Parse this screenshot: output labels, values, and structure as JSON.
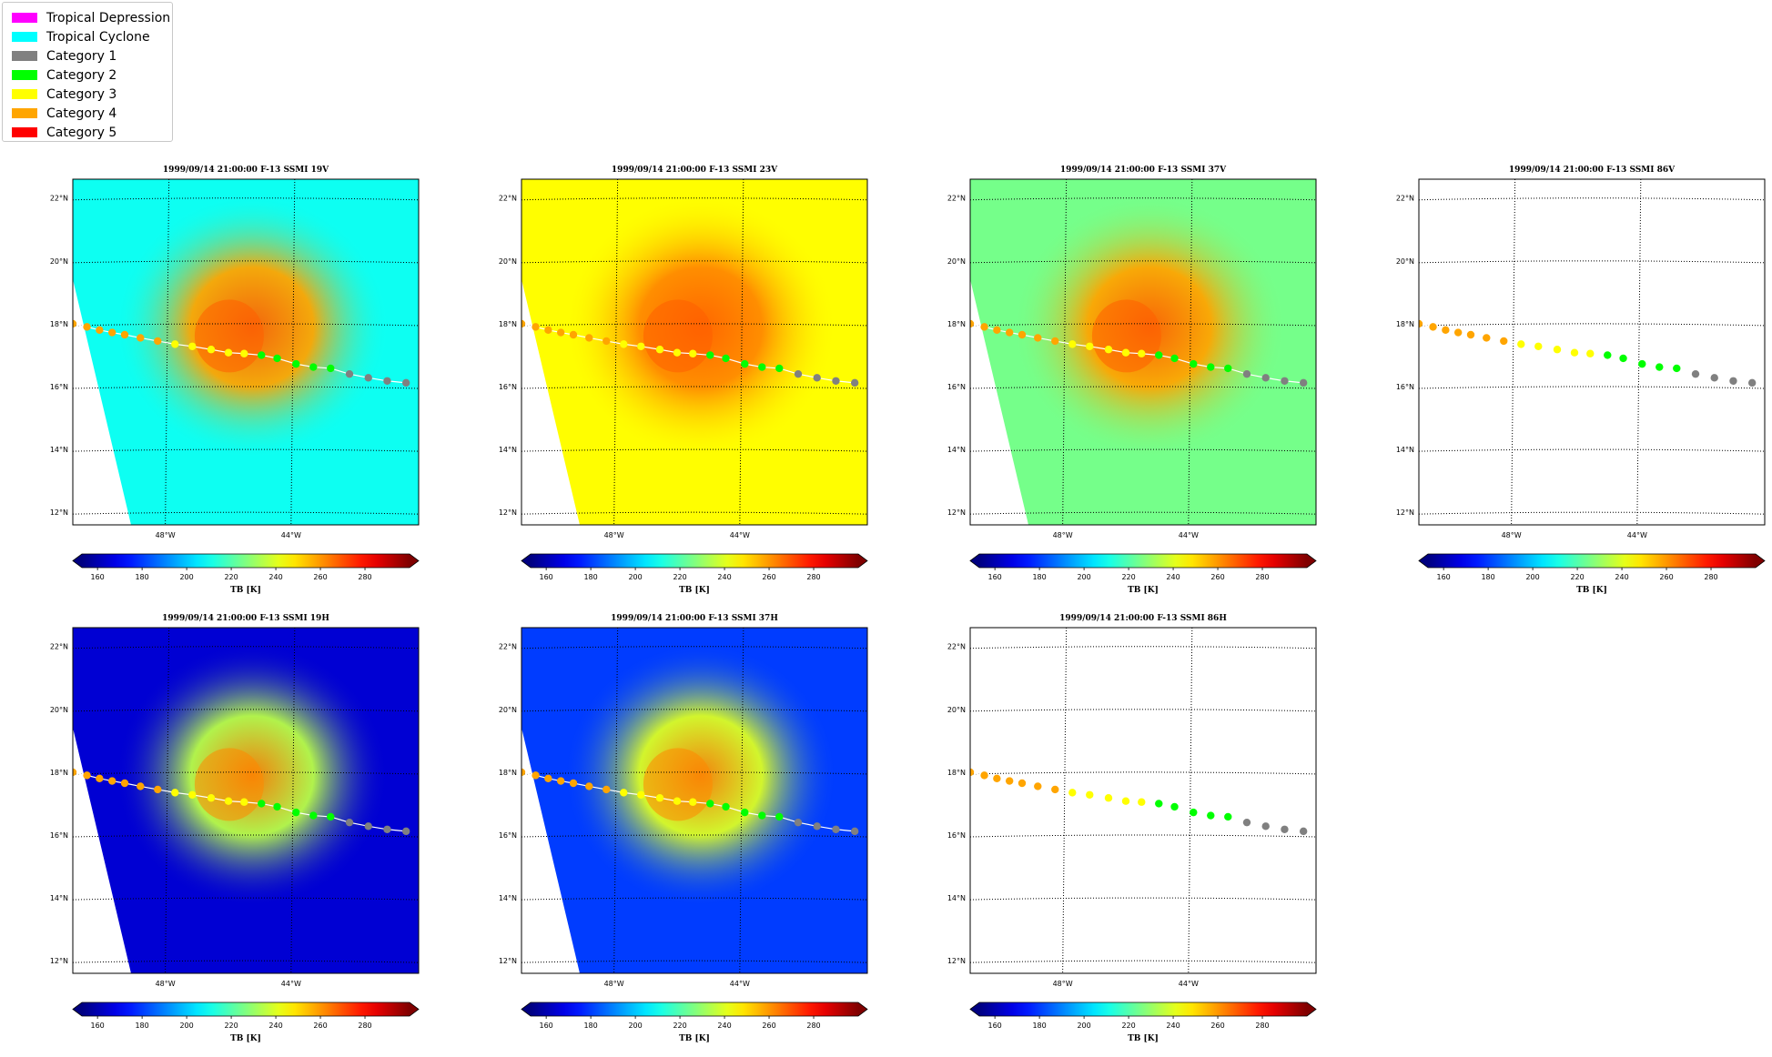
{
  "legend": {
    "items": [
      {
        "label": "Tropical Depression",
        "color": "#ff00ff"
      },
      {
        "label": "Tropical Cyclone",
        "color": "#00ffff"
      },
      {
        "label": "Category 1",
        "color": "#808080"
      },
      {
        "label": "Category 2",
        "color": "#00ff00"
      },
      {
        "label": "Category 3",
        "color": "#ffff00"
      },
      {
        "label": "Category 4",
        "color": "#ffa500"
      },
      {
        "label": "Category 5",
        "color": "#ff0000"
      }
    ]
  },
  "map_axes": {
    "lat_ticks": [
      "22°N",
      "20°N",
      "18°N",
      "16°N",
      "14°N",
      "12°N"
    ],
    "lon_ticks": [
      "48°W",
      "44°W"
    ]
  },
  "colorbar": {
    "label": "TB [K]",
    "ticks": [
      "160",
      "180",
      "200",
      "220",
      "240",
      "260",
      "280"
    ],
    "min": 153,
    "max": 300
  },
  "track": {
    "points": [
      {
        "lon": -51.0,
        "lat": 18.0,
        "category": "Category 4"
      },
      {
        "lon": -50.55,
        "lat": 17.9,
        "category": "Category 4"
      },
      {
        "lon": -50.15,
        "lat": 17.8,
        "category": "Category 4"
      },
      {
        "lon": -49.75,
        "lat": 17.72,
        "category": "Category 4"
      },
      {
        "lon": -49.35,
        "lat": 17.65,
        "category": "Category 4"
      },
      {
        "lon": -48.85,
        "lat": 17.55,
        "category": "Category 4"
      },
      {
        "lon": -48.3,
        "lat": 17.45,
        "category": "Category 4"
      },
      {
        "lon": -47.75,
        "lat": 17.35,
        "category": "Category 3"
      },
      {
        "lon": -47.2,
        "lat": 17.28,
        "category": "Category 3"
      },
      {
        "lon": -46.6,
        "lat": 17.18,
        "category": "Category 3"
      },
      {
        "lon": -46.05,
        "lat": 17.08,
        "category": "Category 3"
      },
      {
        "lon": -45.55,
        "lat": 17.05,
        "category": "Category 3"
      },
      {
        "lon": -45.0,
        "lat": 17.0,
        "category": "Category 2"
      },
      {
        "lon": -44.5,
        "lat": 16.9,
        "category": "Category 2"
      },
      {
        "lon": -43.9,
        "lat": 16.72,
        "category": "Category 2"
      },
      {
        "lon": -43.35,
        "lat": 16.62,
        "category": "Category 2"
      },
      {
        "lon": -42.8,
        "lat": 16.58,
        "category": "Category 2"
      },
      {
        "lon": -42.2,
        "lat": 16.4,
        "category": "Category 1"
      },
      {
        "lon": -41.6,
        "lat": 16.28,
        "category": "Category 1"
      },
      {
        "lon": -41.0,
        "lat": 16.18,
        "category": "Category 1"
      },
      {
        "lon": -40.4,
        "lat": 16.12,
        "category": "Category 1"
      }
    ]
  },
  "panels": [
    {
      "title": "1999/09/14 21:00:00  F-13 SSMI 19V",
      "field": {
        "background": 210,
        "storm": 258,
        "core": 268
      },
      "has_data": true
    },
    {
      "title": "1999/09/14 21:00:00  F-13 SSMI 23V",
      "field": {
        "background": 245,
        "storm": 262,
        "core": 268
      },
      "has_data": true
    },
    {
      "title": "1999/09/14 21:00:00  F-13 SSMI 37V",
      "field": {
        "background": 225,
        "storm": 258,
        "core": 268
      },
      "has_data": true
    },
    {
      "title": "1999/09/14 21:00:00  F-13 SSMI 86V",
      "field": {
        "background": 0,
        "storm": 0,
        "core": 0
      },
      "has_data": false
    },
    {
      "title": "1999/09/14 21:00:00  F-13 SSMI 19H",
      "field": {
        "background": 165,
        "storm": 235,
        "core": 262
      },
      "has_data": true
    },
    {
      "title": "1999/09/14 21:00:00  F-13 SSMI 37H",
      "field": {
        "background": 180,
        "storm": 240,
        "core": 262
      },
      "has_data": true
    },
    {
      "title": "1999/09/14 21:00:00  F-13 SSMI 86H",
      "field": {
        "background": 0,
        "storm": 0,
        "core": 0
      },
      "has_data": false
    }
  ]
}
